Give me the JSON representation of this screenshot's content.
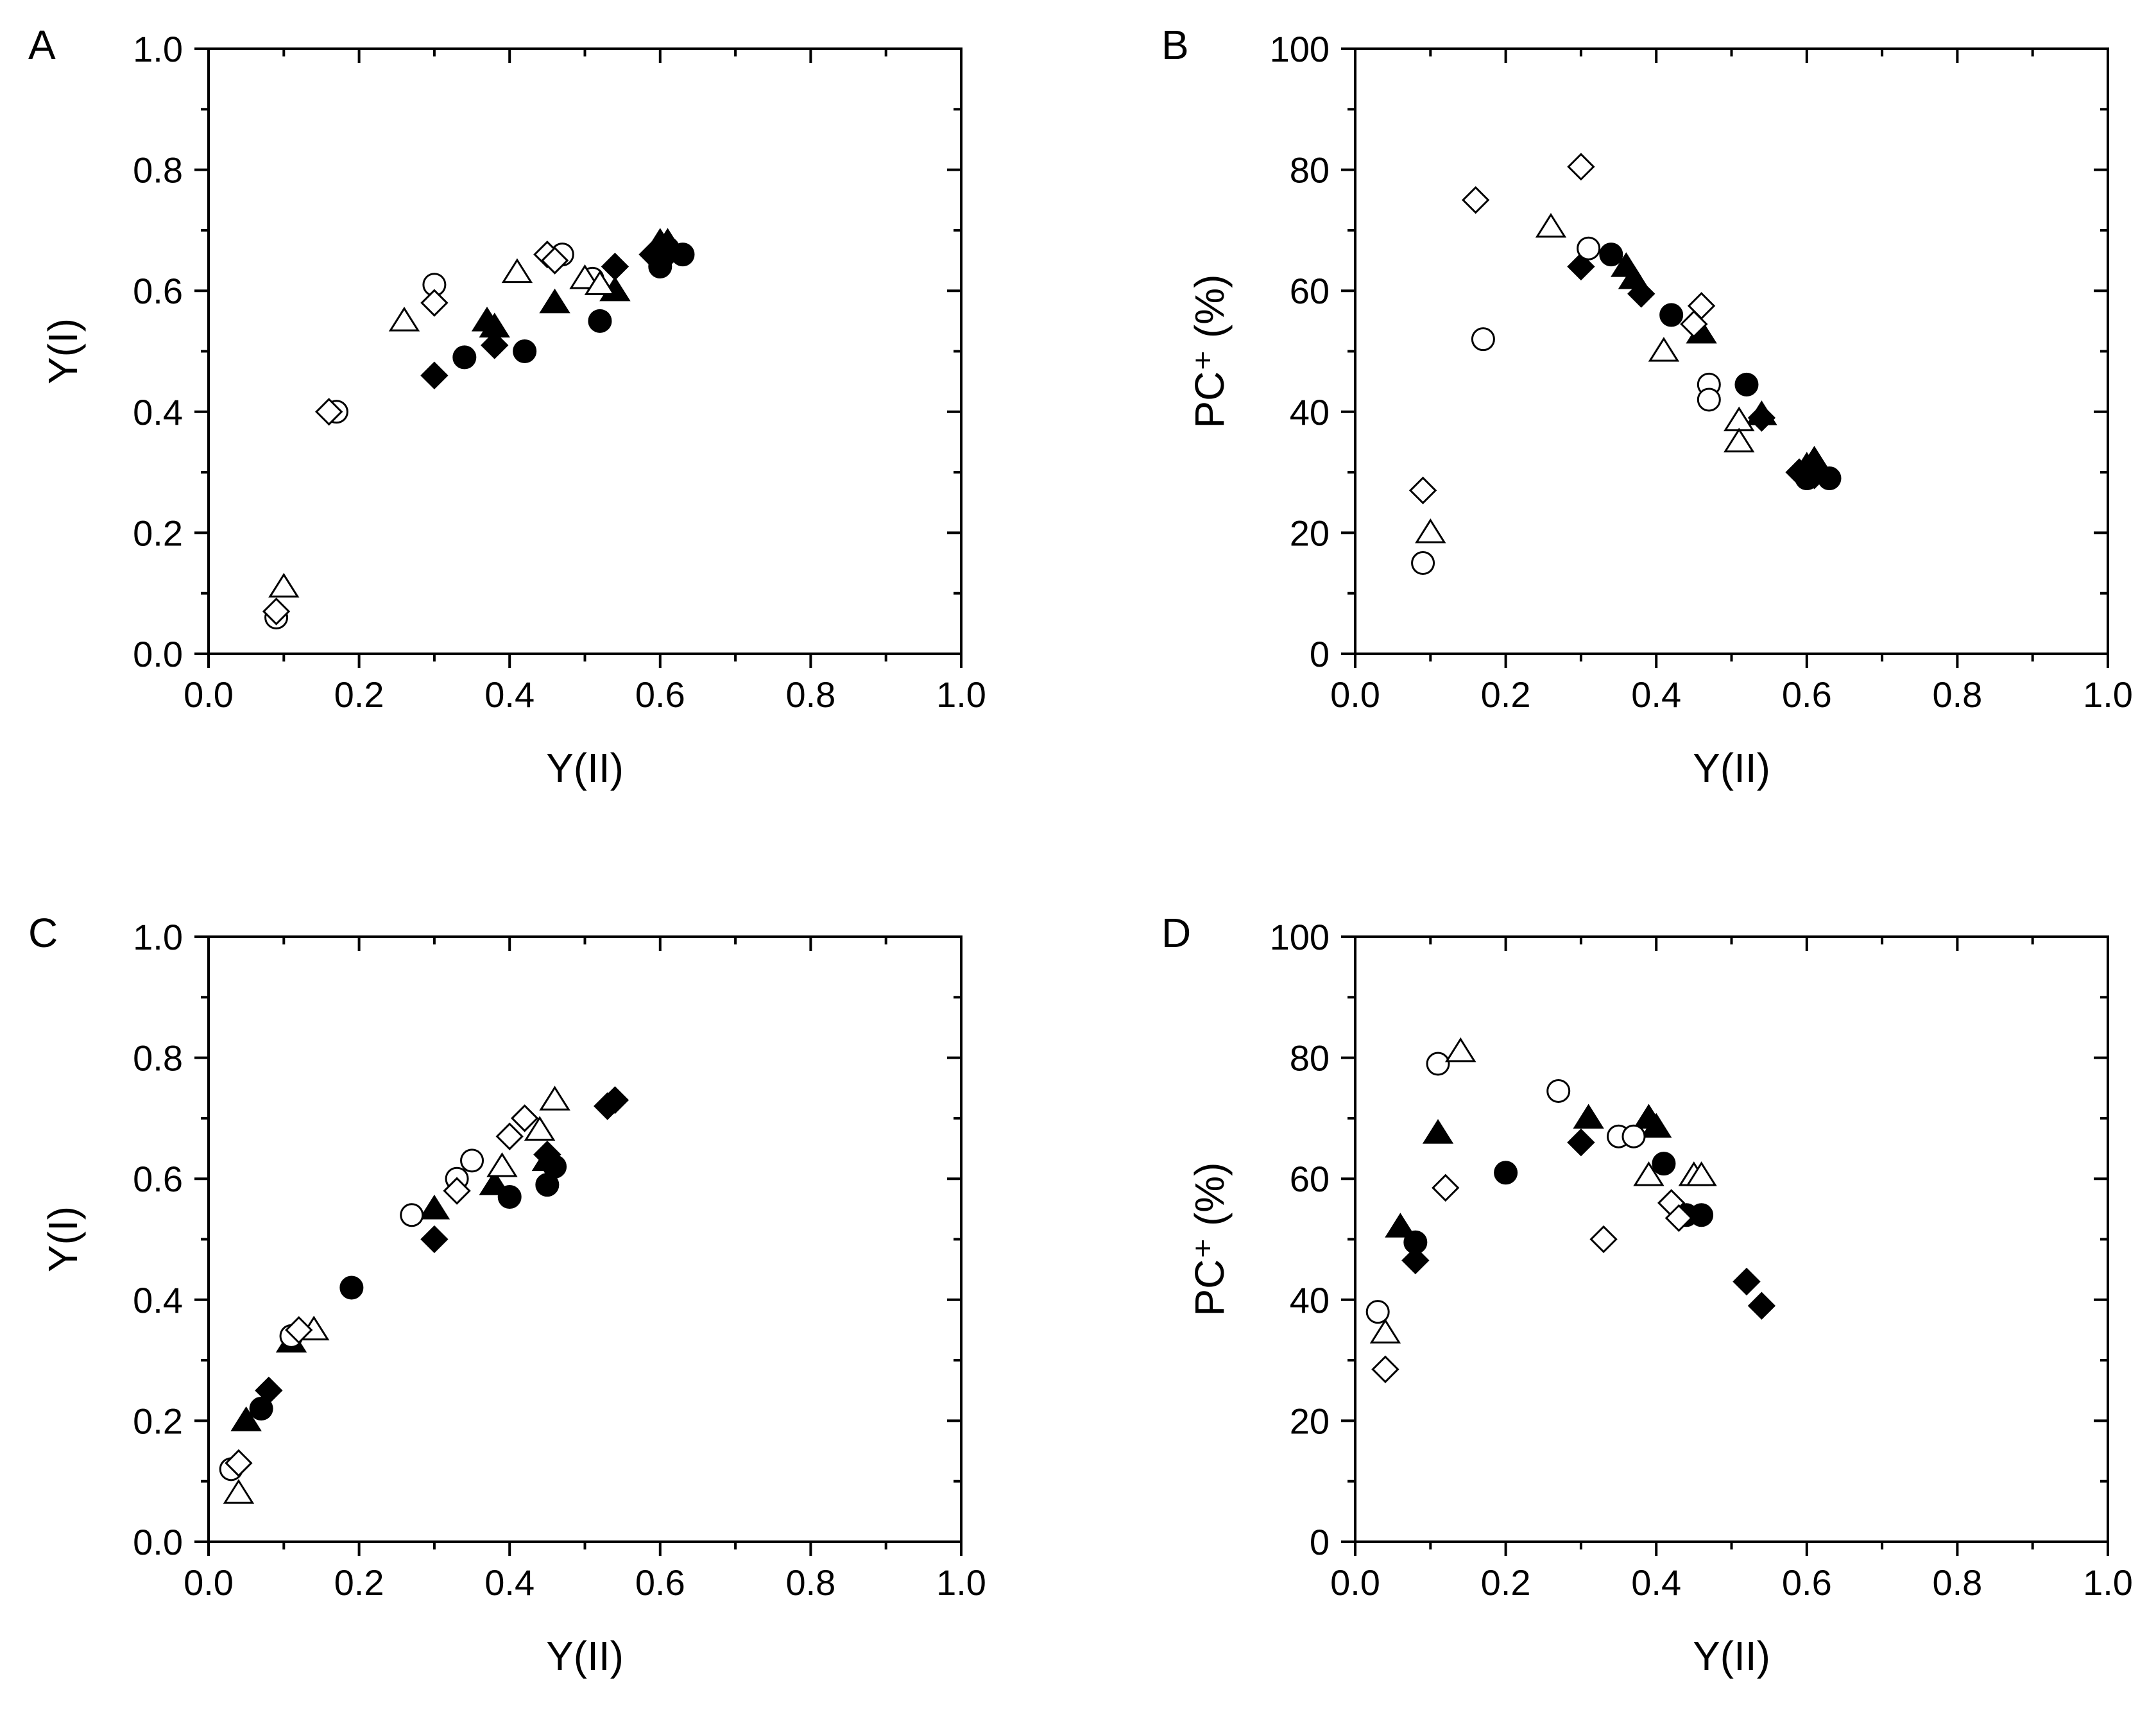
{
  "figure": {
    "colors": {
      "axis": "#000000",
      "filled": "#000000",
      "open_fill": "#ffffff",
      "stroke": "#000000"
    }
  },
  "chart_data": [
    {
      "type": "scatter",
      "panel_label": "A",
      "xlabel": "Y(II)",
      "ylabel": "Y(I)",
      "xlim": [
        0,
        1
      ],
      "ylim": [
        0,
        1
      ],
      "xticks": [
        "0.0",
        "0.2",
        "0.4",
        "0.6",
        "0.8",
        "1.0"
      ],
      "yticks": [
        "0.0",
        "0.2",
        "0.4",
        "0.6",
        "0.8",
        "1.0"
      ],
      "xtick_values": [
        0,
        0.2,
        0.4,
        0.6,
        0.8,
        1.0
      ],
      "ytick_values": [
        0,
        0.2,
        0.4,
        0.6,
        0.8,
        1.0
      ],
      "series": [
        {
          "name": "filled circle",
          "marker": "circle",
          "filled": true,
          "points": [
            [
              0.34,
              0.49
            ],
            [
              0.42,
              0.5
            ],
            [
              0.52,
              0.55
            ],
            [
              0.6,
              0.64
            ],
            [
              0.63,
              0.66
            ],
            [
              0.61,
              0.67
            ]
          ]
        },
        {
          "name": "filled triangle",
          "marker": "triangle",
          "filled": true,
          "points": [
            [
              0.37,
              0.55
            ],
            [
              0.38,
              0.54
            ],
            [
              0.46,
              0.58
            ],
            [
              0.54,
              0.6
            ],
            [
              0.6,
              0.68
            ],
            [
              0.61,
              0.68
            ]
          ]
        },
        {
          "name": "filled diamond",
          "marker": "diamond",
          "filled": true,
          "points": [
            [
              0.3,
              0.46
            ],
            [
              0.38,
              0.51
            ],
            [
              0.54,
              0.64
            ],
            [
              0.59,
              0.66
            ],
            [
              0.61,
              0.66
            ]
          ]
        },
        {
          "name": "open circle",
          "marker": "circle",
          "filled": false,
          "points": [
            [
              0.3,
              0.61
            ],
            [
              0.17,
              0.4
            ],
            [
              0.09,
              0.06
            ],
            [
              0.47,
              0.66
            ],
            [
              0.51,
              0.62
            ]
          ]
        },
        {
          "name": "open triangle",
          "marker": "triangle",
          "filled": false,
          "points": [
            [
              0.26,
              0.55
            ],
            [
              0.41,
              0.63
            ],
            [
              0.1,
              0.11
            ],
            [
              0.5,
              0.62
            ],
            [
              0.52,
              0.61
            ]
          ]
        },
        {
          "name": "open diamond",
          "marker": "diamond",
          "filled": false,
          "points": [
            [
              0.3,
              0.58
            ],
            [
              0.16,
              0.4
            ],
            [
              0.09,
              0.07
            ],
            [
              0.45,
              0.66
            ],
            [
              0.46,
              0.65
            ]
          ]
        }
      ]
    },
    {
      "type": "scatter",
      "panel_label": "B",
      "xlabel": "Y(II)",
      "ylabel": "PC⁺ (%)",
      "xlim": [
        0,
        1
      ],
      "ylim": [
        0,
        100
      ],
      "xticks": [
        "0.0",
        "0.2",
        "0.4",
        "0.6",
        "0.8",
        "1.0"
      ],
      "yticks": [
        "0",
        "20",
        "40",
        "60",
        "80",
        "100"
      ],
      "xtick_values": [
        0,
        0.2,
        0.4,
        0.6,
        0.8,
        1.0
      ],
      "ytick_values": [
        0,
        20,
        40,
        60,
        80,
        100
      ],
      "series": [
        {
          "name": "filled circle",
          "marker": "circle",
          "filled": true,
          "points": [
            [
              0.34,
              66
            ],
            [
              0.42,
              56
            ],
            [
              0.52,
              44.5
            ],
            [
              0.6,
              29
            ],
            [
              0.63,
              29
            ],
            [
              0.61,
              30
            ]
          ]
        },
        {
          "name": "filled triangle",
          "marker": "triangle",
          "filled": true,
          "points": [
            [
              0.36,
              64
            ],
            [
              0.37,
              62
            ],
            [
              0.46,
              53
            ],
            [
              0.54,
              39.5
            ],
            [
              0.6,
              31
            ],
            [
              0.61,
              32
            ]
          ]
        },
        {
          "name": "filled diamond",
          "marker": "diamond",
          "filled": true,
          "points": [
            [
              0.3,
              64
            ],
            [
              0.38,
              59.5
            ],
            [
              0.54,
              39
            ],
            [
              0.59,
              30
            ],
            [
              0.61,
              29.5
            ]
          ]
        },
        {
          "name": "open circle",
          "marker": "circle",
          "filled": false,
          "points": [
            [
              0.31,
              67
            ],
            [
              0.17,
              52
            ],
            [
              0.09,
              15
            ],
            [
              0.47,
              44.5
            ],
            [
              0.47,
              42
            ]
          ]
        },
        {
          "name": "open triangle",
          "marker": "triangle",
          "filled": false,
          "points": [
            [
              0.26,
              70.5
            ],
            [
              0.41,
              50
            ],
            [
              0.1,
              20
            ],
            [
              0.51,
              38.5
            ],
            [
              0.51,
              35
            ]
          ]
        },
        {
          "name": "open diamond",
          "marker": "diamond",
          "filled": false,
          "points": [
            [
              0.3,
              80.5
            ],
            [
              0.16,
              75
            ],
            [
              0.09,
              27
            ],
            [
              0.46,
              57.5
            ],
            [
              0.45,
              54.5
            ]
          ]
        }
      ]
    },
    {
      "type": "scatter",
      "panel_label": "C",
      "xlabel": "Y(II)",
      "ylabel": "Y(I)",
      "xlim": [
        0,
        1
      ],
      "ylim": [
        0,
        1
      ],
      "xticks": [
        "0.0",
        "0.2",
        "0.4",
        "0.6",
        "0.8",
        "1.0"
      ],
      "yticks": [
        "0.0",
        "0.2",
        "0.4",
        "0.6",
        "0.8",
        "1.0"
      ],
      "xtick_values": [
        0,
        0.2,
        0.4,
        0.6,
        0.8,
        1.0
      ],
      "ytick_values": [
        0,
        0.2,
        0.4,
        0.6,
        0.8,
        1.0
      ],
      "series": [
        {
          "name": "filled circle",
          "marker": "circle",
          "filled": true,
          "points": [
            [
              0.07,
              0.22
            ],
            [
              0.19,
              0.42
            ],
            [
              0.4,
              0.57
            ],
            [
              0.45,
              0.59
            ],
            [
              0.46,
              0.62
            ]
          ]
        },
        {
          "name": "filled triangle",
          "marker": "triangle",
          "filled": true,
          "points": [
            [
              0.05,
              0.2
            ],
            [
              0.11,
              0.33
            ],
            [
              0.3,
              0.55
            ],
            [
              0.38,
              0.59
            ],
            [
              0.45,
              0.63
            ]
          ]
        },
        {
          "name": "filled diamond",
          "marker": "diamond",
          "filled": true,
          "points": [
            [
              0.08,
              0.25
            ],
            [
              0.3,
              0.5
            ],
            [
              0.45,
              0.64
            ],
            [
              0.53,
              0.72
            ],
            [
              0.54,
              0.73
            ]
          ]
        },
        {
          "name": "open circle",
          "marker": "circle",
          "filled": false,
          "points": [
            [
              0.03,
              0.12
            ],
            [
              0.11,
              0.34
            ],
            [
              0.27,
              0.54
            ],
            [
              0.33,
              0.6
            ],
            [
              0.35,
              0.63
            ]
          ]
        },
        {
          "name": "open triangle",
          "marker": "triangle",
          "filled": false,
          "points": [
            [
              0.04,
              0.08
            ],
            [
              0.14,
              0.35
            ],
            [
              0.39,
              0.62
            ],
            [
              0.44,
              0.68
            ],
            [
              0.46,
              0.73
            ]
          ]
        },
        {
          "name": "open diamond",
          "marker": "diamond",
          "filled": false,
          "points": [
            [
              0.04,
              0.13
            ],
            [
              0.12,
              0.35
            ],
            [
              0.33,
              0.58
            ],
            [
              0.4,
              0.67
            ],
            [
              0.42,
              0.7
            ]
          ]
        }
      ]
    },
    {
      "type": "scatter",
      "panel_label": "D",
      "xlabel": "Y(II)",
      "ylabel": "PC⁺ (%)",
      "xlim": [
        0,
        1
      ],
      "ylim": [
        0,
        100
      ],
      "xticks": [
        "0.0",
        "0.2",
        "0.4",
        "0.6",
        "0.8",
        "1.0"
      ],
      "yticks": [
        "0",
        "20",
        "40",
        "60",
        "80",
        "100"
      ],
      "xtick_values": [
        0,
        0.2,
        0.4,
        0.6,
        0.8,
        1.0
      ],
      "ytick_values": [
        0,
        20,
        40,
        60,
        80,
        100
      ],
      "series": [
        {
          "name": "filled circle",
          "marker": "circle",
          "filled": true,
          "points": [
            [
              0.08,
              49.5
            ],
            [
              0.2,
              61
            ],
            [
              0.41,
              62.5
            ],
            [
              0.44,
              54
            ],
            [
              0.46,
              54
            ]
          ]
        },
        {
          "name": "filled triangle",
          "marker": "triangle",
          "filled": true,
          "points": [
            [
              0.06,
              52
            ],
            [
              0.11,
              67.5
            ],
            [
              0.31,
              70
            ],
            [
              0.39,
              70
            ],
            [
              0.4,
              68.5
            ]
          ]
        },
        {
          "name": "filled diamond",
          "marker": "diamond",
          "filled": true,
          "points": [
            [
              0.08,
              46.5
            ],
            [
              0.3,
              66
            ],
            [
              0.52,
              43
            ],
            [
              0.54,
              39
            ]
          ]
        },
        {
          "name": "open circle",
          "marker": "circle",
          "filled": false,
          "points": [
            [
              0.03,
              38
            ],
            [
              0.11,
              79
            ],
            [
              0.27,
              74.5
            ],
            [
              0.35,
              67
            ],
            [
              0.37,
              67
            ]
          ]
        },
        {
          "name": "open triangle",
          "marker": "triangle",
          "filled": false,
          "points": [
            [
              0.04,
              34.5
            ],
            [
              0.14,
              81
            ],
            [
              0.39,
              60.5
            ],
            [
              0.45,
              60.5
            ],
            [
              0.46,
              60.5
            ]
          ]
        },
        {
          "name": "open diamond",
          "marker": "diamond",
          "filled": false,
          "points": [
            [
              0.04,
              28.5
            ],
            [
              0.12,
              58.5
            ],
            [
              0.33,
              50
            ],
            [
              0.42,
              56
            ],
            [
              0.43,
              53.5
            ]
          ]
        }
      ]
    }
  ]
}
